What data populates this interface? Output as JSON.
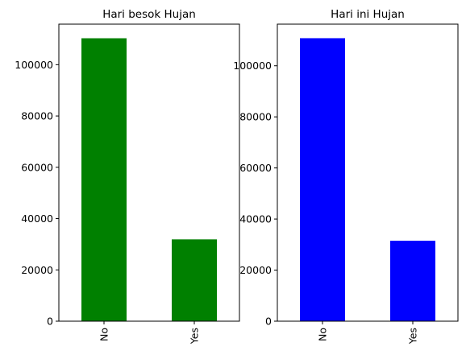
{
  "chart_data": [
    {
      "type": "bar",
      "title": "Hari besok Hujan",
      "categories": [
        "No",
        "Yes"
      ],
      "values": [
        110300,
        31900
      ],
      "color": "#008000",
      "ylim": [
        0,
        115800
      ],
      "yticks": [
        0,
        20000,
        40000,
        60000,
        80000,
        100000
      ],
      "ytick_labels": [
        "0",
        "20000",
        "40000",
        "60000",
        "80000",
        "100000"
      ],
      "grid": false
    },
    {
      "type": "bar",
      "title": "Hari ini Hujan",
      "categories": [
        "No",
        "Yes"
      ],
      "values": [
        110800,
        31500
      ],
      "color": "#0000ff",
      "ylim": [
        0,
        116300
      ],
      "yticks": [
        0,
        20000,
        40000,
        60000,
        80000,
        100000
      ],
      "ytick_labels": [
        "0",
        "20000",
        "40000",
        "60000",
        "80000",
        "100000"
      ],
      "grid": false
    }
  ]
}
